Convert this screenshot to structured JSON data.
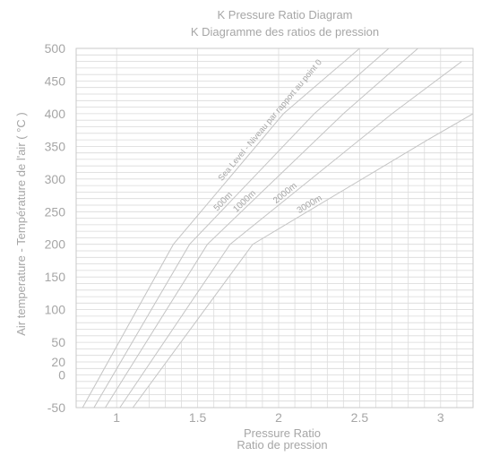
{
  "chart_data": {
    "type": "line",
    "title": "K Pressure Ratio Diagram",
    "subtitle": "K Diagramme des ratios de pression",
    "xlabel": "Pressure Ratio",
    "xlabel_fr": "Ratio de pression",
    "ylabel": "Air temperature - Température de l'air   ( °C )",
    "xlim": [
      0.75,
      3.2
    ],
    "ylim": [
      -50,
      500
    ],
    "x_ticks": [
      1,
      1.5,
      2,
      2.5,
      3
    ],
    "x_tick_labels": [
      "1",
      "1.5",
      "2",
      "2.5",
      "3"
    ],
    "y_ticks": [
      -50,
      0,
      20,
      50,
      100,
      150,
      200,
      250,
      300,
      350,
      400,
      450,
      500
    ],
    "y_tick_labels": [
      "-50",
      "0",
      "20",
      "50",
      "100",
      "150",
      "200",
      "250",
      "300",
      "350",
      "400",
      "450",
      "500"
    ],
    "grid": true,
    "series": [
      {
        "name": "Sea Level - Niveau par rapport au point 0",
        "x": [
          0.79,
          1.35,
          2.03,
          2.5
        ],
        "y": [
          -50,
          200,
          400,
          500
        ]
      },
      {
        "name": "500m",
        "x": [
          0.86,
          1.45,
          2.22,
          2.68
        ],
        "y": [
          -50,
          200,
          400,
          500
        ]
      },
      {
        "name": "1000m",
        "x": [
          0.93,
          1.56,
          2.4,
          2.86
        ],
        "y": [
          -50,
          200,
          400,
          500
        ]
      },
      {
        "name": "2000m",
        "x": [
          1.02,
          1.7,
          2.7,
          3.13
        ],
        "y": [
          -50,
          200,
          400,
          480
        ]
      },
      {
        "name": "3000m",
        "x": [
          1.1,
          1.84,
          2.92,
          3.2
        ],
        "y": [
          -50,
          200,
          360,
          400
        ]
      }
    ]
  }
}
